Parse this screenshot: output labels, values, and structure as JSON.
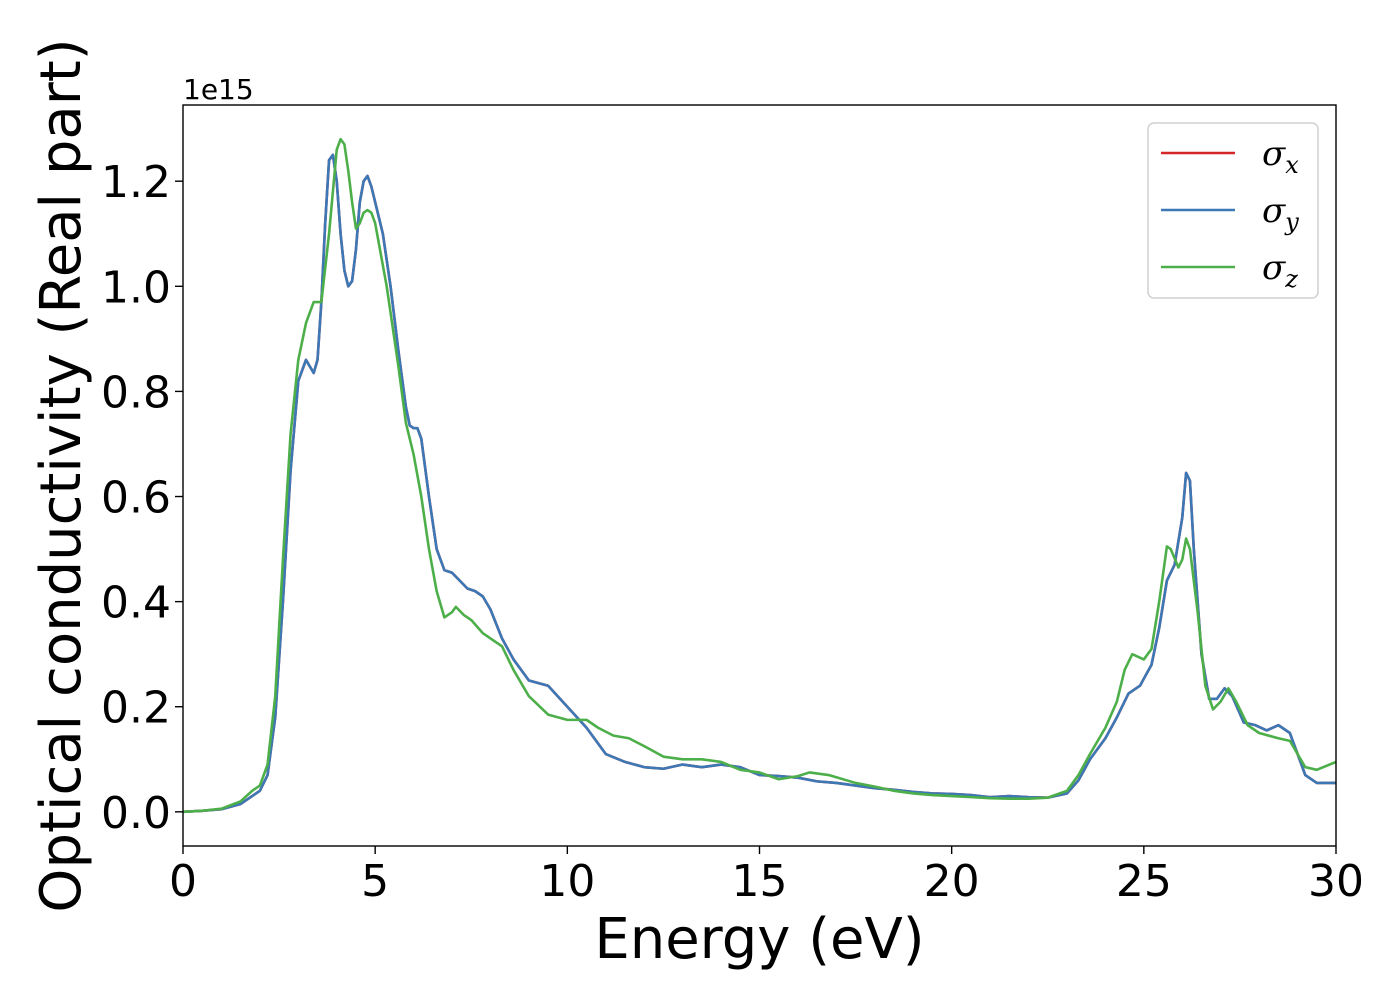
{
  "chart_data": {
    "type": "line",
    "xlabel": "Energy (eV)",
    "ylabel": "Optical conductivity (Real part)",
    "y_offset_text": "1e15",
    "xlim": [
      0,
      30
    ],
    "ylim": [
      -0.065,
      1.345
    ],
    "y_scale_multiplier": 1000000000000000.0,
    "x_ticks": [
      0,
      5,
      10,
      15,
      20,
      25,
      30
    ],
    "x_tick_labels": [
      "0",
      "5",
      "10",
      "15",
      "20",
      "25",
      "30"
    ],
    "y_ticks": [
      0.0,
      0.2,
      0.4,
      0.6,
      0.8,
      1.0,
      1.2
    ],
    "y_tick_labels": [
      "0.0",
      "0.2",
      "0.4",
      "0.6",
      "0.8",
      "1.0",
      "1.2"
    ],
    "grid": false,
    "legend_position": "top-right",
    "series": [
      {
        "name": "σ_x",
        "legend_main": "σ",
        "legend_sub": "x",
        "color": "#d62728",
        "points": [
          [
            0,
            0
          ],
          [
            0.5,
            0.002
          ],
          [
            1.0,
            0.005
          ],
          [
            1.5,
            0.015
          ],
          [
            1.8,
            0.03
          ],
          [
            2.0,
            0.04
          ],
          [
            2.2,
            0.07
          ],
          [
            2.4,
            0.18
          ],
          [
            2.6,
            0.4
          ],
          [
            2.8,
            0.65
          ],
          [
            3.0,
            0.82
          ],
          [
            3.2,
            0.86
          ],
          [
            3.4,
            0.835
          ],
          [
            3.5,
            0.86
          ],
          [
            3.6,
            0.97
          ],
          [
            3.7,
            1.12
          ],
          [
            3.8,
            1.24
          ],
          [
            3.9,
            1.25
          ],
          [
            4.0,
            1.2
          ],
          [
            4.1,
            1.1
          ],
          [
            4.2,
            1.03
          ],
          [
            4.3,
            1.0
          ],
          [
            4.4,
            1.01
          ],
          [
            4.5,
            1.07
          ],
          [
            4.6,
            1.16
          ],
          [
            4.7,
            1.2
          ],
          [
            4.8,
            1.21
          ],
          [
            4.9,
            1.19
          ],
          [
            5.0,
            1.16
          ],
          [
            5.2,
            1.1
          ],
          [
            5.4,
            1.0
          ],
          [
            5.6,
            0.88
          ],
          [
            5.8,
            0.77
          ],
          [
            5.9,
            0.735
          ],
          [
            6.0,
            0.73
          ],
          [
            6.1,
            0.73
          ],
          [
            6.2,
            0.71
          ],
          [
            6.4,
            0.6
          ],
          [
            6.6,
            0.5
          ],
          [
            6.8,
            0.46
          ],
          [
            7.0,
            0.455
          ],
          [
            7.2,
            0.44
          ],
          [
            7.4,
            0.425
          ],
          [
            7.6,
            0.42
          ],
          [
            7.8,
            0.41
          ],
          [
            8.0,
            0.385
          ],
          [
            8.3,
            0.33
          ],
          [
            8.6,
            0.29
          ],
          [
            9.0,
            0.25
          ],
          [
            9.5,
            0.24
          ],
          [
            10.0,
            0.2
          ],
          [
            10.5,
            0.16
          ],
          [
            11.0,
            0.11
          ],
          [
            11.5,
            0.095
          ],
          [
            12.0,
            0.085
          ],
          [
            12.5,
            0.082
          ],
          [
            13.0,
            0.09
          ],
          [
            13.5,
            0.085
          ],
          [
            14.0,
            0.09
          ],
          [
            14.5,
            0.085
          ],
          [
            15.0,
            0.07
          ],
          [
            15.5,
            0.068
          ],
          [
            16.0,
            0.065
          ],
          [
            16.5,
            0.058
          ],
          [
            17.0,
            0.055
          ],
          [
            17.5,
            0.05
          ],
          [
            18.0,
            0.045
          ],
          [
            18.5,
            0.042
          ],
          [
            19.0,
            0.038
          ],
          [
            19.5,
            0.035
          ],
          [
            20.0,
            0.034
          ],
          [
            20.5,
            0.032
          ],
          [
            21.0,
            0.028
          ],
          [
            21.5,
            0.03
          ],
          [
            22.0,
            0.028
          ],
          [
            22.5,
            0.027
          ],
          [
            23.0,
            0.035
          ],
          [
            23.3,
            0.06
          ],
          [
            23.6,
            0.1
          ],
          [
            24.0,
            0.14
          ],
          [
            24.3,
            0.18
          ],
          [
            24.6,
            0.225
          ],
          [
            24.9,
            0.24
          ],
          [
            25.2,
            0.28
          ],
          [
            25.4,
            0.35
          ],
          [
            25.6,
            0.44
          ],
          [
            25.8,
            0.47
          ],
          [
            26.0,
            0.56
          ],
          [
            26.1,
            0.645
          ],
          [
            26.2,
            0.63
          ],
          [
            26.3,
            0.5
          ],
          [
            26.5,
            0.3
          ],
          [
            26.7,
            0.215
          ],
          [
            26.9,
            0.215
          ],
          [
            27.1,
            0.235
          ],
          [
            27.3,
            0.22
          ],
          [
            27.6,
            0.17
          ],
          [
            27.9,
            0.165
          ],
          [
            28.2,
            0.155
          ],
          [
            28.5,
            0.165
          ],
          [
            28.8,
            0.15
          ],
          [
            29.0,
            0.11
          ],
          [
            29.2,
            0.07
          ],
          [
            29.5,
            0.055
          ],
          [
            30.0,
            0.055
          ]
        ]
      },
      {
        "name": "σ_y",
        "legend_main": "σ",
        "legend_sub": "y",
        "color": "#3b78b5",
        "points": [
          [
            0,
            0
          ],
          [
            0.5,
            0.002
          ],
          [
            1.0,
            0.005
          ],
          [
            1.5,
            0.015
          ],
          [
            1.8,
            0.03
          ],
          [
            2.0,
            0.04
          ],
          [
            2.2,
            0.07
          ],
          [
            2.4,
            0.18
          ],
          [
            2.6,
            0.4
          ],
          [
            2.8,
            0.65
          ],
          [
            3.0,
            0.82
          ],
          [
            3.2,
            0.86
          ],
          [
            3.4,
            0.835
          ],
          [
            3.5,
            0.86
          ],
          [
            3.6,
            0.97
          ],
          [
            3.7,
            1.12
          ],
          [
            3.8,
            1.24
          ],
          [
            3.9,
            1.25
          ],
          [
            4.0,
            1.2
          ],
          [
            4.1,
            1.1
          ],
          [
            4.2,
            1.03
          ],
          [
            4.3,
            1.0
          ],
          [
            4.4,
            1.01
          ],
          [
            4.5,
            1.07
          ],
          [
            4.6,
            1.16
          ],
          [
            4.7,
            1.2
          ],
          [
            4.8,
            1.21
          ],
          [
            4.9,
            1.19
          ],
          [
            5.0,
            1.16
          ],
          [
            5.2,
            1.1
          ],
          [
            5.4,
            1.0
          ],
          [
            5.6,
            0.88
          ],
          [
            5.8,
            0.77
          ],
          [
            5.9,
            0.735
          ],
          [
            6.0,
            0.73
          ],
          [
            6.1,
            0.73
          ],
          [
            6.2,
            0.71
          ],
          [
            6.4,
            0.6
          ],
          [
            6.6,
            0.5
          ],
          [
            6.8,
            0.46
          ],
          [
            7.0,
            0.455
          ],
          [
            7.2,
            0.44
          ],
          [
            7.4,
            0.425
          ],
          [
            7.6,
            0.42
          ],
          [
            7.8,
            0.41
          ],
          [
            8.0,
            0.385
          ],
          [
            8.3,
            0.33
          ],
          [
            8.6,
            0.29
          ],
          [
            9.0,
            0.25
          ],
          [
            9.5,
            0.24
          ],
          [
            10.0,
            0.2
          ],
          [
            10.5,
            0.16
          ],
          [
            11.0,
            0.11
          ],
          [
            11.5,
            0.095
          ],
          [
            12.0,
            0.085
          ],
          [
            12.5,
            0.082
          ],
          [
            13.0,
            0.09
          ],
          [
            13.5,
            0.085
          ],
          [
            14.0,
            0.09
          ],
          [
            14.5,
            0.085
          ],
          [
            15.0,
            0.07
          ],
          [
            15.5,
            0.068
          ],
          [
            16.0,
            0.065
          ],
          [
            16.5,
            0.058
          ],
          [
            17.0,
            0.055
          ],
          [
            17.5,
            0.05
          ],
          [
            18.0,
            0.045
          ],
          [
            18.5,
            0.042
          ],
          [
            19.0,
            0.038
          ],
          [
            19.5,
            0.035
          ],
          [
            20.0,
            0.034
          ],
          [
            20.5,
            0.032
          ],
          [
            21.0,
            0.028
          ],
          [
            21.5,
            0.03
          ],
          [
            22.0,
            0.028
          ],
          [
            22.5,
            0.027
          ],
          [
            23.0,
            0.035
          ],
          [
            23.3,
            0.06
          ],
          [
            23.6,
            0.1
          ],
          [
            24.0,
            0.14
          ],
          [
            24.3,
            0.18
          ],
          [
            24.6,
            0.225
          ],
          [
            24.9,
            0.24
          ],
          [
            25.2,
            0.28
          ],
          [
            25.4,
            0.35
          ],
          [
            25.6,
            0.44
          ],
          [
            25.8,
            0.47
          ],
          [
            26.0,
            0.56
          ],
          [
            26.1,
            0.645
          ],
          [
            26.2,
            0.63
          ],
          [
            26.3,
            0.5
          ],
          [
            26.5,
            0.3
          ],
          [
            26.7,
            0.215
          ],
          [
            26.9,
            0.215
          ],
          [
            27.1,
            0.235
          ],
          [
            27.3,
            0.22
          ],
          [
            27.6,
            0.17
          ],
          [
            27.9,
            0.165
          ],
          [
            28.2,
            0.155
          ],
          [
            28.5,
            0.165
          ],
          [
            28.8,
            0.15
          ],
          [
            29.0,
            0.11
          ],
          [
            29.2,
            0.07
          ],
          [
            29.5,
            0.055
          ],
          [
            30.0,
            0.055
          ]
        ]
      },
      {
        "name": "σ_z",
        "legend_main": "σ",
        "legend_sub": "z",
        "color": "#4daf4a",
        "points": [
          [
            0,
            0
          ],
          [
            0.5,
            0.002
          ],
          [
            1.0,
            0.006
          ],
          [
            1.5,
            0.02
          ],
          [
            1.8,
            0.04
          ],
          [
            2.0,
            0.05
          ],
          [
            2.2,
            0.09
          ],
          [
            2.4,
            0.22
          ],
          [
            2.6,
            0.48
          ],
          [
            2.8,
            0.72
          ],
          [
            3.0,
            0.86
          ],
          [
            3.2,
            0.93
          ],
          [
            3.4,
            0.97
          ],
          [
            3.6,
            0.97
          ],
          [
            3.8,
            1.1
          ],
          [
            4.0,
            1.26
          ],
          [
            4.1,
            1.28
          ],
          [
            4.2,
            1.27
          ],
          [
            4.3,
            1.22
          ],
          [
            4.4,
            1.16
          ],
          [
            4.5,
            1.11
          ],
          [
            4.6,
            1.12
          ],
          [
            4.7,
            1.14
          ],
          [
            4.8,
            1.145
          ],
          [
            4.9,
            1.14
          ],
          [
            5.0,
            1.12
          ],
          [
            5.3,
            1.0
          ],
          [
            5.6,
            0.85
          ],
          [
            5.8,
            0.74
          ],
          [
            6.0,
            0.68
          ],
          [
            6.2,
            0.6
          ],
          [
            6.4,
            0.5
          ],
          [
            6.6,
            0.42
          ],
          [
            6.8,
            0.37
          ],
          [
            7.0,
            0.38
          ],
          [
            7.1,
            0.39
          ],
          [
            7.3,
            0.375
          ],
          [
            7.5,
            0.365
          ],
          [
            7.8,
            0.34
          ],
          [
            8.0,
            0.33
          ],
          [
            8.3,
            0.315
          ],
          [
            8.6,
            0.27
          ],
          [
            9.0,
            0.22
          ],
          [
            9.5,
            0.185
          ],
          [
            10.0,
            0.175
          ],
          [
            10.5,
            0.175
          ],
          [
            10.8,
            0.16
          ],
          [
            11.2,
            0.145
          ],
          [
            11.6,
            0.14
          ],
          [
            12.0,
            0.125
          ],
          [
            12.5,
            0.105
          ],
          [
            13.0,
            0.1
          ],
          [
            13.5,
            0.1
          ],
          [
            14.0,
            0.095
          ],
          [
            14.5,
            0.08
          ],
          [
            15.0,
            0.075
          ],
          [
            15.5,
            0.062
          ],
          [
            16.0,
            0.068
          ],
          [
            16.3,
            0.075
          ],
          [
            16.8,
            0.07
          ],
          [
            17.5,
            0.055
          ],
          [
            18.0,
            0.048
          ],
          [
            18.5,
            0.04
          ],
          [
            19.0,
            0.035
          ],
          [
            19.5,
            0.032
          ],
          [
            20.0,
            0.03
          ],
          [
            20.5,
            0.028
          ],
          [
            21.0,
            0.026
          ],
          [
            21.5,
            0.025
          ],
          [
            22.0,
            0.025
          ],
          [
            22.5,
            0.027
          ],
          [
            23.0,
            0.04
          ],
          [
            23.3,
            0.07
          ],
          [
            23.6,
            0.11
          ],
          [
            24.0,
            0.16
          ],
          [
            24.3,
            0.21
          ],
          [
            24.5,
            0.27
          ],
          [
            24.7,
            0.3
          ],
          [
            25.0,
            0.29
          ],
          [
            25.2,
            0.31
          ],
          [
            25.4,
            0.4
          ],
          [
            25.6,
            0.505
          ],
          [
            25.7,
            0.5
          ],
          [
            25.9,
            0.465
          ],
          [
            26.0,
            0.48
          ],
          [
            26.1,
            0.52
          ],
          [
            26.2,
            0.5
          ],
          [
            26.4,
            0.38
          ],
          [
            26.6,
            0.24
          ],
          [
            26.8,
            0.195
          ],
          [
            27.0,
            0.21
          ],
          [
            27.2,
            0.235
          ],
          [
            27.4,
            0.21
          ],
          [
            27.7,
            0.165
          ],
          [
            28.0,
            0.15
          ],
          [
            28.5,
            0.14
          ],
          [
            28.8,
            0.135
          ],
          [
            29.0,
            0.11
          ],
          [
            29.2,
            0.085
          ],
          [
            29.5,
            0.08
          ],
          [
            30.0,
            0.095
          ]
        ]
      }
    ]
  }
}
